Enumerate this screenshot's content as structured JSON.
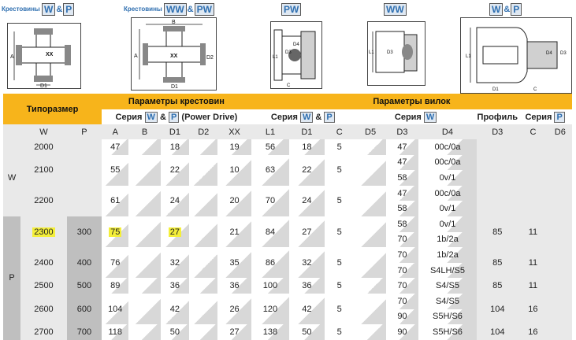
{
  "top": {
    "label1": "Крестовины",
    "label1_boxes": [
      "W",
      "P"
    ],
    "label2": "Крестовины",
    "label2_boxes": [
      "WW",
      "PW"
    ],
    "heads": [
      "PW",
      "WW"
    ],
    "head_last": [
      "W",
      "P"
    ],
    "amp": "&",
    "dims1": [
      "A",
      "XX",
      "D1"
    ],
    "dims2": [
      "B",
      "A",
      "XX",
      "D2",
      "D1"
    ],
    "dims3": [
      "L1",
      "C",
      "D3",
      "D4"
    ],
    "dims4": [
      "L1",
      "D3"
    ],
    "dims5": [
      "L1",
      "D1",
      "C",
      "D4",
      "D3"
    ]
  },
  "table": {
    "h_size": "Типоразмер",
    "h_cross": "Параметры крестовин",
    "h_yoke": "Параметры вилок",
    "h_series_cross_pre": "Серия ",
    "h_series_cross_post": " (Power Drive)",
    "h_series_yoke1_pre": "Серия ",
    "h_series_yoke2_pre": "Серия ",
    "h_profile": "Профиль",
    "h_series_yoke3_pre": "Серия ",
    "box_w": "W",
    "box_p": "P",
    "amp": "&",
    "cols": [
      "W",
      "P",
      "A",
      "B",
      "D1",
      "D2",
      "XX",
      "L1",
      "D1",
      "C",
      "D5",
      "D3",
      "D4",
      "D3",
      "C",
      "D6"
    ],
    "side_w": "W",
    "side_p": "P",
    "rows": [
      {
        "w": "2000",
        "p": "",
        "a": "47",
        "d1": "18",
        "xx": "19",
        "l1": "56",
        "yd1": "18",
        "c": "5",
        "d3": [
          "47"
        ],
        "d4": [
          "00c/0a"
        ],
        "pd3": "",
        "pc": ""
      },
      {
        "w": "2100",
        "p": "",
        "a": "55",
        "d1": "22",
        "xx": "10",
        "l1": "63",
        "yd1": "22",
        "c": "5",
        "d3": [
          "47",
          "58"
        ],
        "d4": [
          "00c/0a",
          "0v/1"
        ],
        "pd3": "",
        "pc": ""
      },
      {
        "w": "2200",
        "p": "",
        "a": "61",
        "d1": "24",
        "xx": "20",
        "l1": "70",
        "yd1": "24",
        "c": "5",
        "d3": [
          "47",
          "58"
        ],
        "d4": [
          "00c/0a",
          "0v/1"
        ],
        "pd3": "",
        "pc": ""
      },
      {
        "w": "2300",
        "p": "300",
        "a": "75",
        "d1": "27",
        "xx": "21",
        "l1": "84",
        "yd1": "27",
        "c": "5",
        "d3": [
          "58",
          "70"
        ],
        "d4": [
          "0v/1",
          "1b/2a"
        ],
        "pd3": "85",
        "pc": "11"
      },
      {
        "w": "2400",
        "p": "400",
        "a": "76",
        "d1": "32",
        "xx": "35",
        "l1": "86",
        "yd1": "32",
        "c": "5",
        "d3": [
          "70",
          "70"
        ],
        "d4": [
          "1b/2a",
          "S4LH/S5"
        ],
        "pd3": "85",
        "pc": "11"
      },
      {
        "w": "2500",
        "p": "500",
        "a": "89",
        "d1": "36",
        "xx": "36",
        "l1": "100",
        "yd1": "36",
        "c": "5",
        "d3": [
          "70"
        ],
        "d4": [
          "S4/S5"
        ],
        "pd3": "85",
        "pc": "11"
      },
      {
        "w": "2600",
        "p": "600",
        "a": "104",
        "d1": "42",
        "xx": "26",
        "l1": "120",
        "yd1": "42",
        "c": "5",
        "d3": [
          "70",
          "90"
        ],
        "d4": [
          "S4/S5",
          "S5H/S6"
        ],
        "pd3": "104",
        "pc": "16"
      },
      {
        "w": "2700",
        "p": "700",
        "a": "118",
        "d1": "50",
        "xx": "27",
        "l1": "138",
        "yd1": "50",
        "c": "5",
        "d3": [
          "90"
        ],
        "d4": [
          "S5H/S6"
        ],
        "pd3": "104",
        "pc": "16"
      }
    ]
  },
  "colors": {
    "header": "#f7b41b",
    "highlight": "#f4ef3a",
    "grey": "#e9e9e9",
    "dark": "#bfbfbf",
    "box": "#dfe8f2",
    "blue": "#2f6fb0"
  }
}
